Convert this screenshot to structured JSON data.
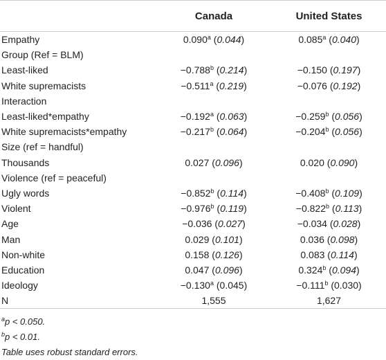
{
  "table": {
    "headers": [
      "",
      "Canada",
      "United States"
    ],
    "rows": [
      {
        "label": "Empathy",
        "ca": {
          "v": "0.090",
          "s": "a",
          "se": "0.044",
          "se_italic": true
        },
        "us": {
          "v": "0.085",
          "s": "a",
          "se": "0.040",
          "se_italic": true
        }
      },
      {
        "label": "Group (Ref = BLM)"
      },
      {
        "label": "Least-liked",
        "ca": {
          "v": "−0.788",
          "s": "b",
          "se": "0.214",
          "se_italic": true
        },
        "us": {
          "v": "−0.150",
          "s": "",
          "se": "0.197",
          "se_italic": true
        }
      },
      {
        "label": "White supremacists",
        "ca": {
          "v": "−0.511",
          "s": "a",
          "se": "0.219",
          "se_italic": true
        },
        "us": {
          "v": "−0.076",
          "s": "",
          "se": "0.192",
          "se_italic": true
        }
      },
      {
        "label": "Interaction"
      },
      {
        "label": "Least-liked*empathy",
        "ca": {
          "v": "−0.192",
          "s": "a",
          "se": "0.063",
          "se_italic": true
        },
        "us": {
          "v": "−0.259",
          "s": "b",
          "se": "0.056",
          "se_italic": true
        }
      },
      {
        "label": "White supremacists*empathy",
        "ca": {
          "v": "−0.217",
          "s": "b",
          "se": "0.064",
          "se_italic": true
        },
        "us": {
          "v": "−0.204",
          "s": "b",
          "se": "0.056",
          "se_italic": true
        }
      },
      {
        "label": "Size (ref = handful)"
      },
      {
        "label": "Thousands",
        "ca": {
          "v": "0.027",
          "s": "",
          "se": "0.096",
          "se_italic": true
        },
        "us": {
          "v": "0.020",
          "s": "",
          "se": "0.090",
          "se_italic": true
        }
      },
      {
        "label": "Violence (ref = peaceful)"
      },
      {
        "label": "Ugly words",
        "ca": {
          "v": "−0.852",
          "s": "b",
          "se": "0.114",
          "se_italic": true
        },
        "us": {
          "v": "−0.408",
          "s": "b",
          "se": "0.109",
          "se_italic": true
        }
      },
      {
        "label": "Violent",
        "ca": {
          "v": "−0.976",
          "s": "b",
          "se": "0.119",
          "se_italic": true
        },
        "us": {
          "v": "−0.822",
          "s": "b",
          "se": "0.113",
          "se_italic": true
        }
      },
      {
        "label": "Age",
        "ca": {
          "v": "−0.036",
          "s": "",
          "se": "0.027",
          "se_italic": true
        },
        "us": {
          "v": "−0.034",
          "s": "",
          "se": "0.028",
          "se_italic": true
        }
      },
      {
        "label": "Man",
        "ca": {
          "v": "0.029",
          "s": "",
          "se": "0.101",
          "se_italic": true
        },
        "us": {
          "v": "0.036",
          "s": "",
          "se": "0.098",
          "se_italic": true
        }
      },
      {
        "label": "Non-white",
        "ca": {
          "v": "0.158",
          "s": "",
          "se": "0.126",
          "se_italic": true
        },
        "us": {
          "v": "0.083",
          "s": "",
          "se": "0.114",
          "se_italic": true
        }
      },
      {
        "label": "Education",
        "ca": {
          "v": "0.047",
          "s": "",
          "se": "0.096",
          "se_italic": true
        },
        "us": {
          "v": "0.324",
          "s": "b",
          "se": "0.094",
          "se_italic": true
        }
      },
      {
        "label": "Ideology",
        "ca": {
          "v": "−0.130",
          "s": "a",
          "se": "0.045",
          "se_italic": false
        },
        "us": {
          "v": "−0.111",
          "s": "b",
          "se": "0.030",
          "se_italic": false
        }
      },
      {
        "label": "N",
        "ca": {
          "v": "1,555",
          "s": "",
          "se": ""
        },
        "us": {
          "v": "1,627",
          "s": "",
          "se": ""
        }
      }
    ]
  },
  "notes": [
    {
      "sup": "a",
      "text": "p < 0.050."
    },
    {
      "sup": "b",
      "text": "p < 0.01."
    },
    {
      "sup": "",
      "text": "Table uses robust standard errors."
    }
  ]
}
